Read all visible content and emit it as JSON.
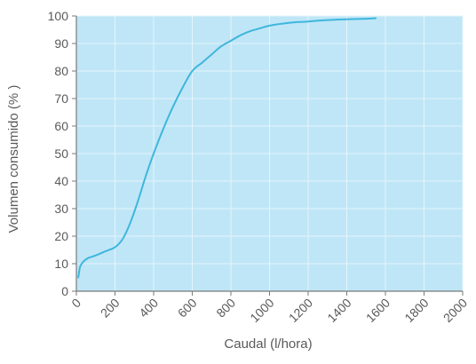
{
  "chart_data": {
    "type": "line",
    "title": "",
    "xlabel": "Caudal (l/hora)",
    "ylabel": "Volumen consumido (% )",
    "xlim": [
      0,
      2000
    ],
    "ylim": [
      0,
      100
    ],
    "x_ticks": [
      0,
      200,
      400,
      600,
      800,
      1000,
      1200,
      1400,
      1600,
      1800,
      2000
    ],
    "y_ticks": [
      0,
      10,
      20,
      30,
      40,
      50,
      60,
      70,
      80,
      90,
      100
    ],
    "grid": true,
    "legend": "none",
    "colors": {
      "plot_background": "#bfe6f7",
      "grid": "#e6f4fb",
      "axis": "#7a7a7a",
      "line": "#3fb6dc"
    },
    "series": [
      {
        "x": [
          10,
          20,
          40,
          60,
          100,
          150,
          200,
          240,
          280,
          320,
          360,
          400,
          450,
          500,
          550,
          600,
          650,
          700,
          750,
          800,
          850,
          900,
          950,
          1000,
          1100,
          1200,
          1300,
          1400,
          1500,
          1550
        ],
        "y": [
          5,
          9,
          11,
          12,
          13,
          14.5,
          16,
          19,
          25,
          33,
          42,
          50,
          59,
          67,
          74,
          80,
          83,
          86,
          89,
          91,
          93,
          94.5,
          95.5,
          96.5,
          97.5,
          98,
          98.5,
          98.8,
          99,
          99.2
        ]
      }
    ]
  }
}
